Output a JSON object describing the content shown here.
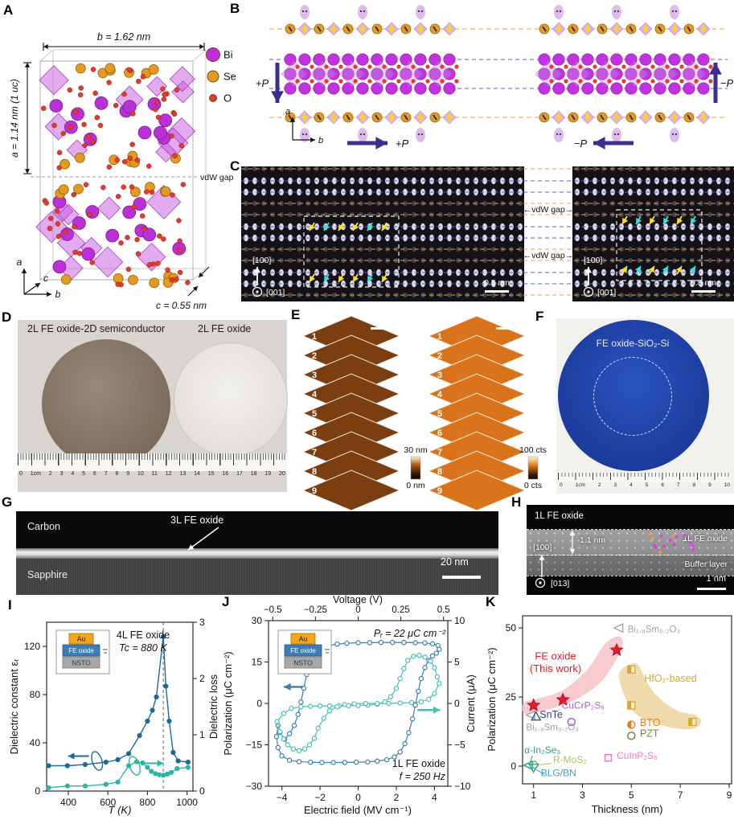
{
  "panel_labels": {
    "A": "A",
    "B": "B",
    "C": "C",
    "D": "D",
    "E": "E",
    "F": "F",
    "G": "G",
    "H": "H",
    "I": "I",
    "J": "J",
    "K": "K"
  },
  "panel_a": {
    "dim_b": "b = 1.62 nm",
    "dim_a": "a = 1.14 nm (1 uc)",
    "dim_c": "c = 0.55 nm",
    "vdw": "vdW gap",
    "axis_a": "a",
    "axis_b": "b",
    "axis_c": "c",
    "legend": [
      {
        "label": "Bi",
        "color": "#c02be0"
      },
      {
        "label": "Se",
        "color": "#e39a20"
      },
      {
        "label": "O",
        "color": "#e23b2e"
      }
    ]
  },
  "panel_b": {
    "axis_a": "a",
    "axis_b": "b",
    "p_plus": "+P",
    "p_minus": "−P",
    "arrow_color": "#3d2d8f",
    "dash_orange": "#e8a33d",
    "dash_blue": "#5b5bd0"
  },
  "panel_c": {
    "zone": "[100]",
    "beam": "[001]",
    "scale": "0.5 nm",
    "vdw": "←vdW gap→"
  },
  "panel_d": {
    "left_wafer_label": "2L FE oxide-2D semiconductor",
    "right_wafer_label": "2L FE oxide",
    "ruler_numbers": [
      "0",
      "1cm",
      "2",
      "3",
      "4",
      "5",
      "6",
      "7",
      "8",
      "9",
      "10",
      "11",
      "12",
      "13",
      "14",
      "15",
      "16",
      "17",
      "18",
      "19",
      "20"
    ]
  },
  "panel_e": {
    "stack_numbers": [
      "1",
      "2",
      "3",
      "4",
      "5",
      "6",
      "7",
      "8",
      "9"
    ],
    "left_scale_top": "30 nm",
    "left_scale_bottom": "0 nm",
    "right_scale_top": "100 cts",
    "right_scale_bottom": "0 cts"
  },
  "panel_f": {
    "wafer_label": "FE oxide-SiO₂-Si",
    "ruler_numbers": [
      "0",
      "1cm",
      "2",
      "3",
      "4",
      "5",
      "6",
      "7",
      "8",
      "9",
      "10"
    ]
  },
  "panel_g": {
    "top_label": "Carbon",
    "film_label": "3L FE oxide",
    "substrate_label": "Sapphire",
    "scale": "20 nm"
  },
  "panel_h": {
    "top_label": "1L FE oxide",
    "thickness_label": "1.1 nm",
    "layer_label": "1L FE oxide",
    "buffer_label": "Buffer layer",
    "zone": "[100]",
    "beam": "[013]",
    "scale": "1 nm"
  },
  "device_inset": {
    "top": "Au",
    "mid": "FE oxide",
    "bottom": "NSTO"
  },
  "chart_data": [
    {
      "panel": "I",
      "type": "line",
      "title": "4L FE oxide",
      "subtitle": "Tc = 880 K",
      "curie_temperature_K": 880,
      "xlabel": "T (K)",
      "xlim": [
        290,
        1030
      ],
      "x_ticks": [
        400,
        600,
        800,
        1000
      ],
      "ylabel": "Dielectric constant εᵣ",
      "ylim": [
        0,
        140
      ],
      "y_ticks": [
        0,
        40,
        80,
        120
      ],
      "ylabel2": "Dielectric loss",
      "y2lim": [
        0,
        3
      ],
      "y2_ticks": [
        0,
        1,
        2,
        3
      ],
      "series": [
        {
          "name": "dielectric constant",
          "axis": "left",
          "color": "#1b6a9a",
          "x": [
            300,
            395,
            485,
            590,
            650,
            705,
            760,
            800,
            825,
            845,
            880,
            893,
            910,
            930,
            955,
            1005
          ],
          "y": [
            21,
            21,
            22,
            24,
            26,
            31,
            46,
            58,
            67,
            78,
            128,
            87,
            58,
            32,
            25,
            24
          ]
        },
        {
          "name": "dielectric loss",
          "axis": "right",
          "color": "#2cb5a5",
          "x": [
            300,
            395,
            485,
            590,
            650,
            705,
            745,
            775,
            800,
            820,
            840,
            860,
            880,
            900,
            920,
            950,
            1005
          ],
          "y": [
            0.06,
            0.09,
            0.09,
            0.12,
            0.16,
            0.45,
            0.52,
            0.5,
            0.42,
            0.35,
            0.31,
            0.29,
            0.28,
            0.3,
            0.33,
            0.4,
            0.42
          ]
        }
      ]
    },
    {
      "panel": "J",
      "type": "hysteresis-loop",
      "xlabel": "Electric field (MV cm⁻¹)",
      "xlim": [
        -4.7,
        4.7
      ],
      "x_ticks": [
        -4,
        -2,
        0,
        2,
        4
      ],
      "xlabel_top": "Voltage (V)",
      "top_lim": [
        -0.525,
        0.525
      ],
      "top_tick_values": [
        -0.5,
        -0.25,
        0,
        0.25,
        0.5
      ],
      "top_tick_labels": [
        "−0.5",
        "−0.25",
        "0",
        "0.25",
        "0.5"
      ],
      "ylabel": "Polarization (μC cm⁻²)",
      "ylim": [
        -30,
        30
      ],
      "y_ticks": [
        30,
        15,
        0,
        -15,
        -30
      ],
      "ylabel2": "Current (μA)",
      "y2lim": [
        -10,
        10
      ],
      "y2_ticks": [
        10,
        5,
        0,
        -5,
        -10
      ],
      "remanent_polarization": "Pᵣ = 22 μC cm⁻²",
      "sample": "1L FE oxide",
      "frequency": "f = 250 Hz",
      "series": [
        {
          "name": "polarization",
          "axis": "left",
          "color": "#3b7fae",
          "points": [
            [
              -4.2,
              -8
            ],
            [
              -4.28,
              -12
            ],
            [
              -4.2,
              -16
            ],
            [
              -4.0,
              -19
            ],
            [
              -3.6,
              -20.6
            ],
            [
              -3.1,
              -21.1
            ],
            [
              -2.5,
              -21.3
            ],
            [
              -1.9,
              -21.4
            ],
            [
              -1.3,
              -21.4
            ],
            [
              -0.7,
              -21.4
            ],
            [
              -0.1,
              -21.3
            ],
            [
              0.5,
              -21.2
            ],
            [
              1.0,
              -20.9
            ],
            [
              1.5,
              -20.4
            ],
            [
              1.9,
              -19.4
            ],
            [
              2.2,
              -17.6
            ],
            [
              2.45,
              -14.6
            ],
            [
              2.65,
              -10.6
            ],
            [
              2.85,
              -5.6
            ],
            [
              3.0,
              -0.6
            ],
            [
              3.15,
              4.4
            ],
            [
              3.3,
              9
            ],
            [
              3.5,
              13
            ],
            [
              3.7,
              15.6
            ],
            [
              3.9,
              17.2
            ],
            [
              4.1,
              18.2
            ],
            [
              4.25,
              19.6
            ],
            [
              4.18,
              21
            ],
            [
              3.9,
              21.6
            ],
            [
              3.5,
              21.9
            ],
            [
              3.0,
              22
            ],
            [
              2.4,
              22.1
            ],
            [
              1.8,
              22.1
            ],
            [
              1.2,
              22.1
            ],
            [
              0.6,
              22
            ],
            [
              0.0,
              22
            ],
            [
              -0.6,
              21.8
            ],
            [
              -1.1,
              21.5
            ],
            [
              -1.6,
              20.9
            ],
            [
              -2.0,
              20
            ],
            [
              -2.3,
              18
            ],
            [
              -2.5,
              15
            ],
            [
              -2.7,
              10.5
            ],
            [
              -2.85,
              5.5
            ],
            [
              -3.0,
              0.5
            ],
            [
              -3.15,
              -4
            ],
            [
              -3.35,
              -8
            ],
            [
              -3.6,
              -11
            ],
            [
              -3.85,
              -13
            ],
            [
              -4.1,
              -10.5
            ]
          ]
        },
        {
          "name": "current",
          "axis": "right",
          "color": "#49bfb4",
          "points": [
            [
              -4.25,
              -2.2
            ],
            [
              -3.9,
              -1.2
            ],
            [
              -3.5,
              -0.6
            ],
            [
              -3.0,
              -0.4
            ],
            [
              -2.5,
              -0.35
            ],
            [
              -2.0,
              -0.3
            ],
            [
              -1.5,
              -0.3
            ],
            [
              -1.0,
              -0.3
            ],
            [
              -0.5,
              -0.28
            ],
            [
              0,
              -0.25
            ],
            [
              0.5,
              -0.2
            ],
            [
              1.0,
              -0.1
            ],
            [
              1.4,
              0.2
            ],
            [
              1.7,
              0.8
            ],
            [
              2.0,
              1.8
            ],
            [
              2.2,
              3.0
            ],
            [
              2.4,
              4.2
            ],
            [
              2.6,
              5.2
            ],
            [
              2.9,
              5.7
            ],
            [
              3.2,
              5.8
            ],
            [
              3.5,
              5.6
            ],
            [
              3.8,
              5.1
            ],
            [
              4.0,
              4.3
            ],
            [
              4.15,
              3.2
            ],
            [
              4.25,
              2.4
            ],
            [
              4.0,
              1.2
            ],
            [
              3.7,
              0.5
            ],
            [
              3.3,
              0.2
            ],
            [
              2.8,
              0.1
            ],
            [
              2.2,
              0.05
            ],
            [
              1.6,
              0
            ],
            [
              1.0,
              0
            ],
            [
              0.4,
              0
            ],
            [
              -0.2,
              -0.05
            ],
            [
              -0.7,
              -0.15
            ],
            [
              -1.1,
              -0.4
            ],
            [
              -1.5,
              -0.9
            ],
            [
              -1.8,
              -1.8
            ],
            [
              -2.1,
              -3.0
            ],
            [
              -2.3,
              -4.2
            ],
            [
              -2.55,
              -5.0
            ],
            [
              -2.8,
              -5.5
            ],
            [
              -3.1,
              -5.7
            ],
            [
              -3.4,
              -5.5
            ],
            [
              -3.7,
              -5.0
            ],
            [
              -3.9,
              -4.3
            ],
            [
              -4.1,
              -3.4
            ]
          ]
        }
      ]
    },
    {
      "panel": "K",
      "type": "scatter",
      "xlabel": "Thickness (nm)",
      "xlim": [
        0.55,
        9.1
      ],
      "x_ticks": [
        1,
        3,
        5,
        7,
        9
      ],
      "ylabel": "Polarization (μC cm⁻²)",
      "ylim": [
        -6.4,
        54.4
      ],
      "y_ticks": [
        0,
        25,
        50
      ],
      "regions": [
        {
          "name": "FE oxide (This work)",
          "color": "#f5b9c2",
          "opacity": 0.75,
          "points": [
            [
              0.65,
              19
            ],
            [
              1.6,
              20.5
            ],
            [
              2.7,
              24
            ],
            [
              3.7,
              30
            ],
            [
              4.35,
              38
            ],
            [
              4.65,
              44.5
            ],
            [
              4.45,
              47
            ],
            [
              3.9,
              44
            ],
            [
              3.2,
              35
            ],
            [
              2.2,
              27.5
            ],
            [
              1.2,
              24.5
            ],
            [
              0.6,
              23
            ]
          ]
        },
        {
          "name": "HfO₂-based",
          "color": "#ecd49e",
          "opacity": 0.85,
          "points": [
            [
              4.75,
              36
            ],
            [
              5.25,
              37
            ],
            [
              5.6,
              31
            ],
            [
              6.1,
              25
            ],
            [
              6.9,
              20
            ],
            [
              7.6,
              18.5
            ],
            [
              7.85,
              16
            ],
            [
              7.5,
              13.5
            ],
            [
              6.6,
              14
            ],
            [
              5.7,
              16.5
            ],
            [
              5.05,
              20
            ],
            [
              4.65,
              27
            ],
            [
              4.5,
              33
            ]
          ]
        }
      ],
      "series": [
        {
          "name": "FE oxide (This work)",
          "marker": "star",
          "color": "#e8192c",
          "points": [
            [
              1,
              22
            ],
            [
              2.2,
              24
            ],
            [
              4.4,
              42
            ]
          ]
        },
        {
          "name": "Bi₁.₈Sm₀.₂O₃",
          "marker": "triangle-left",
          "color": "#a8a8a8",
          "points": [
            [
              4.5,
              50
            ],
            [
              0.9,
              18.5
            ]
          ]
        },
        {
          "name": "SnTe",
          "marker": "triangle-up",
          "color": "#555a78",
          "points": [
            [
              1.1,
              18
            ]
          ]
        },
        {
          "name": "CuCrP₂S₆",
          "marker": "circle",
          "color": "#a663c9",
          "points": [
            [
              2.55,
              16
            ]
          ]
        },
        {
          "name": "HfO₂-based",
          "marker": "square-half",
          "color": "#d9a62e",
          "points": [
            [
              5,
              35
            ],
            [
              5,
              22
            ],
            [
              7.5,
              16
            ]
          ]
        },
        {
          "name": "BTO",
          "marker": "circle-half",
          "color": "#e87d1e",
          "points": [
            [
              5,
              15
            ]
          ]
        },
        {
          "name": "PZT",
          "marker": "circle",
          "color": "#8a7a2a",
          "points": [
            [
              5,
              11
            ]
          ]
        },
        {
          "name": "CuInP₂S₆",
          "marker": "square",
          "color": "#e87bb8",
          "points": [
            [
              4.05,
              3
            ]
          ]
        },
        {
          "name": "α-In₂Se₃",
          "marker": "triangle-left",
          "color": "#2e9b8f",
          "points": [
            [
              0.8,
              0.3
            ]
          ]
        },
        {
          "name": "R-MoS₂",
          "marker": "diamond",
          "color": "#9fae3e",
          "points": [
            [
              1.05,
              0.5
            ]
          ]
        },
        {
          "name": "BLG/BN",
          "marker": "triangle-down",
          "color": "#36a3c9",
          "points": [
            [
              1.0,
              -0.6
            ]
          ]
        }
      ],
      "labels": [
        {
          "text": "FE oxide",
          "x": 1.9,
          "y": 38.5,
          "color": "#e8192c",
          "size": 13,
          "anchor": "middle"
        },
        {
          "text": "(This work)",
          "x": 1.9,
          "y": 34,
          "color": "#e8192c",
          "size": 13,
          "anchor": "middle"
        },
        {
          "text": "Bi₁.₈Sm₀.₂O₃",
          "x": 4.85,
          "y": 48.5,
          "color": "#9aa0a6",
          "size": 11.5,
          "anchor": "start"
        },
        {
          "text": "HfO₂-based",
          "x": 6.6,
          "y": 30.5,
          "color": "#d9a62e",
          "size": 12.5,
          "anchor": "middle"
        },
        {
          "text": "SnTe",
          "x": 1.25,
          "y": 17.5,
          "color": "#3a4070",
          "size": 12.5,
          "anchor": "start"
        },
        {
          "text": "CuCrP₂S₆",
          "x": 2.15,
          "y": 20.8,
          "color": "#a663c9",
          "size": 12,
          "anchor": "start"
        },
        {
          "text": "Bi₁.₈Sm₀.₂O₃",
          "x": 0.7,
          "y": 13,
          "color": "#9aa0a6",
          "size": 11.5,
          "anchor": "start"
        },
        {
          "text": "BTO",
          "x": 5.35,
          "y": 14.6,
          "color": "#e87d1e",
          "size": 12.5,
          "anchor": "start"
        },
        {
          "text": "PZT",
          "x": 5.35,
          "y": 10.6,
          "color": "#8a7a2a",
          "size": 12.5,
          "anchor": "start"
        },
        {
          "text": "CuInP₂S₆",
          "x": 4.4,
          "y": 2.6,
          "color": "#e87bb8",
          "size": 12,
          "anchor": "start"
        },
        {
          "text": "α-In₂Se₃",
          "x": 0.62,
          "y": 4.6,
          "color": "#2e9b8f",
          "size": 12,
          "anchor": "start"
        },
        {
          "text": "R-MoS₂",
          "x": 1.8,
          "y": 1.2,
          "color": "#b5bd4f",
          "size": 12,
          "anchor": "start"
        },
        {
          "text": "BLG/BN",
          "x": 1.3,
          "y": -3.6,
          "color": "#36a3c9",
          "size": 12,
          "anchor": "start"
        }
      ],
      "leaders": [
        {
          "x1": 1.75,
          "y1": 1.0,
          "x2": 1.25,
          "y2": 0.5,
          "color": "#b5bd4f"
        },
        {
          "x1": 1.45,
          "y1": -3.0,
          "x2": 1.1,
          "y2": -1.2,
          "color": "#36a3c9"
        },
        {
          "x1": 0.95,
          "y1": 3.8,
          "x2": 0.85,
          "y2": 1.0,
          "color": "#2e9b8f"
        }
      ]
    }
  ]
}
